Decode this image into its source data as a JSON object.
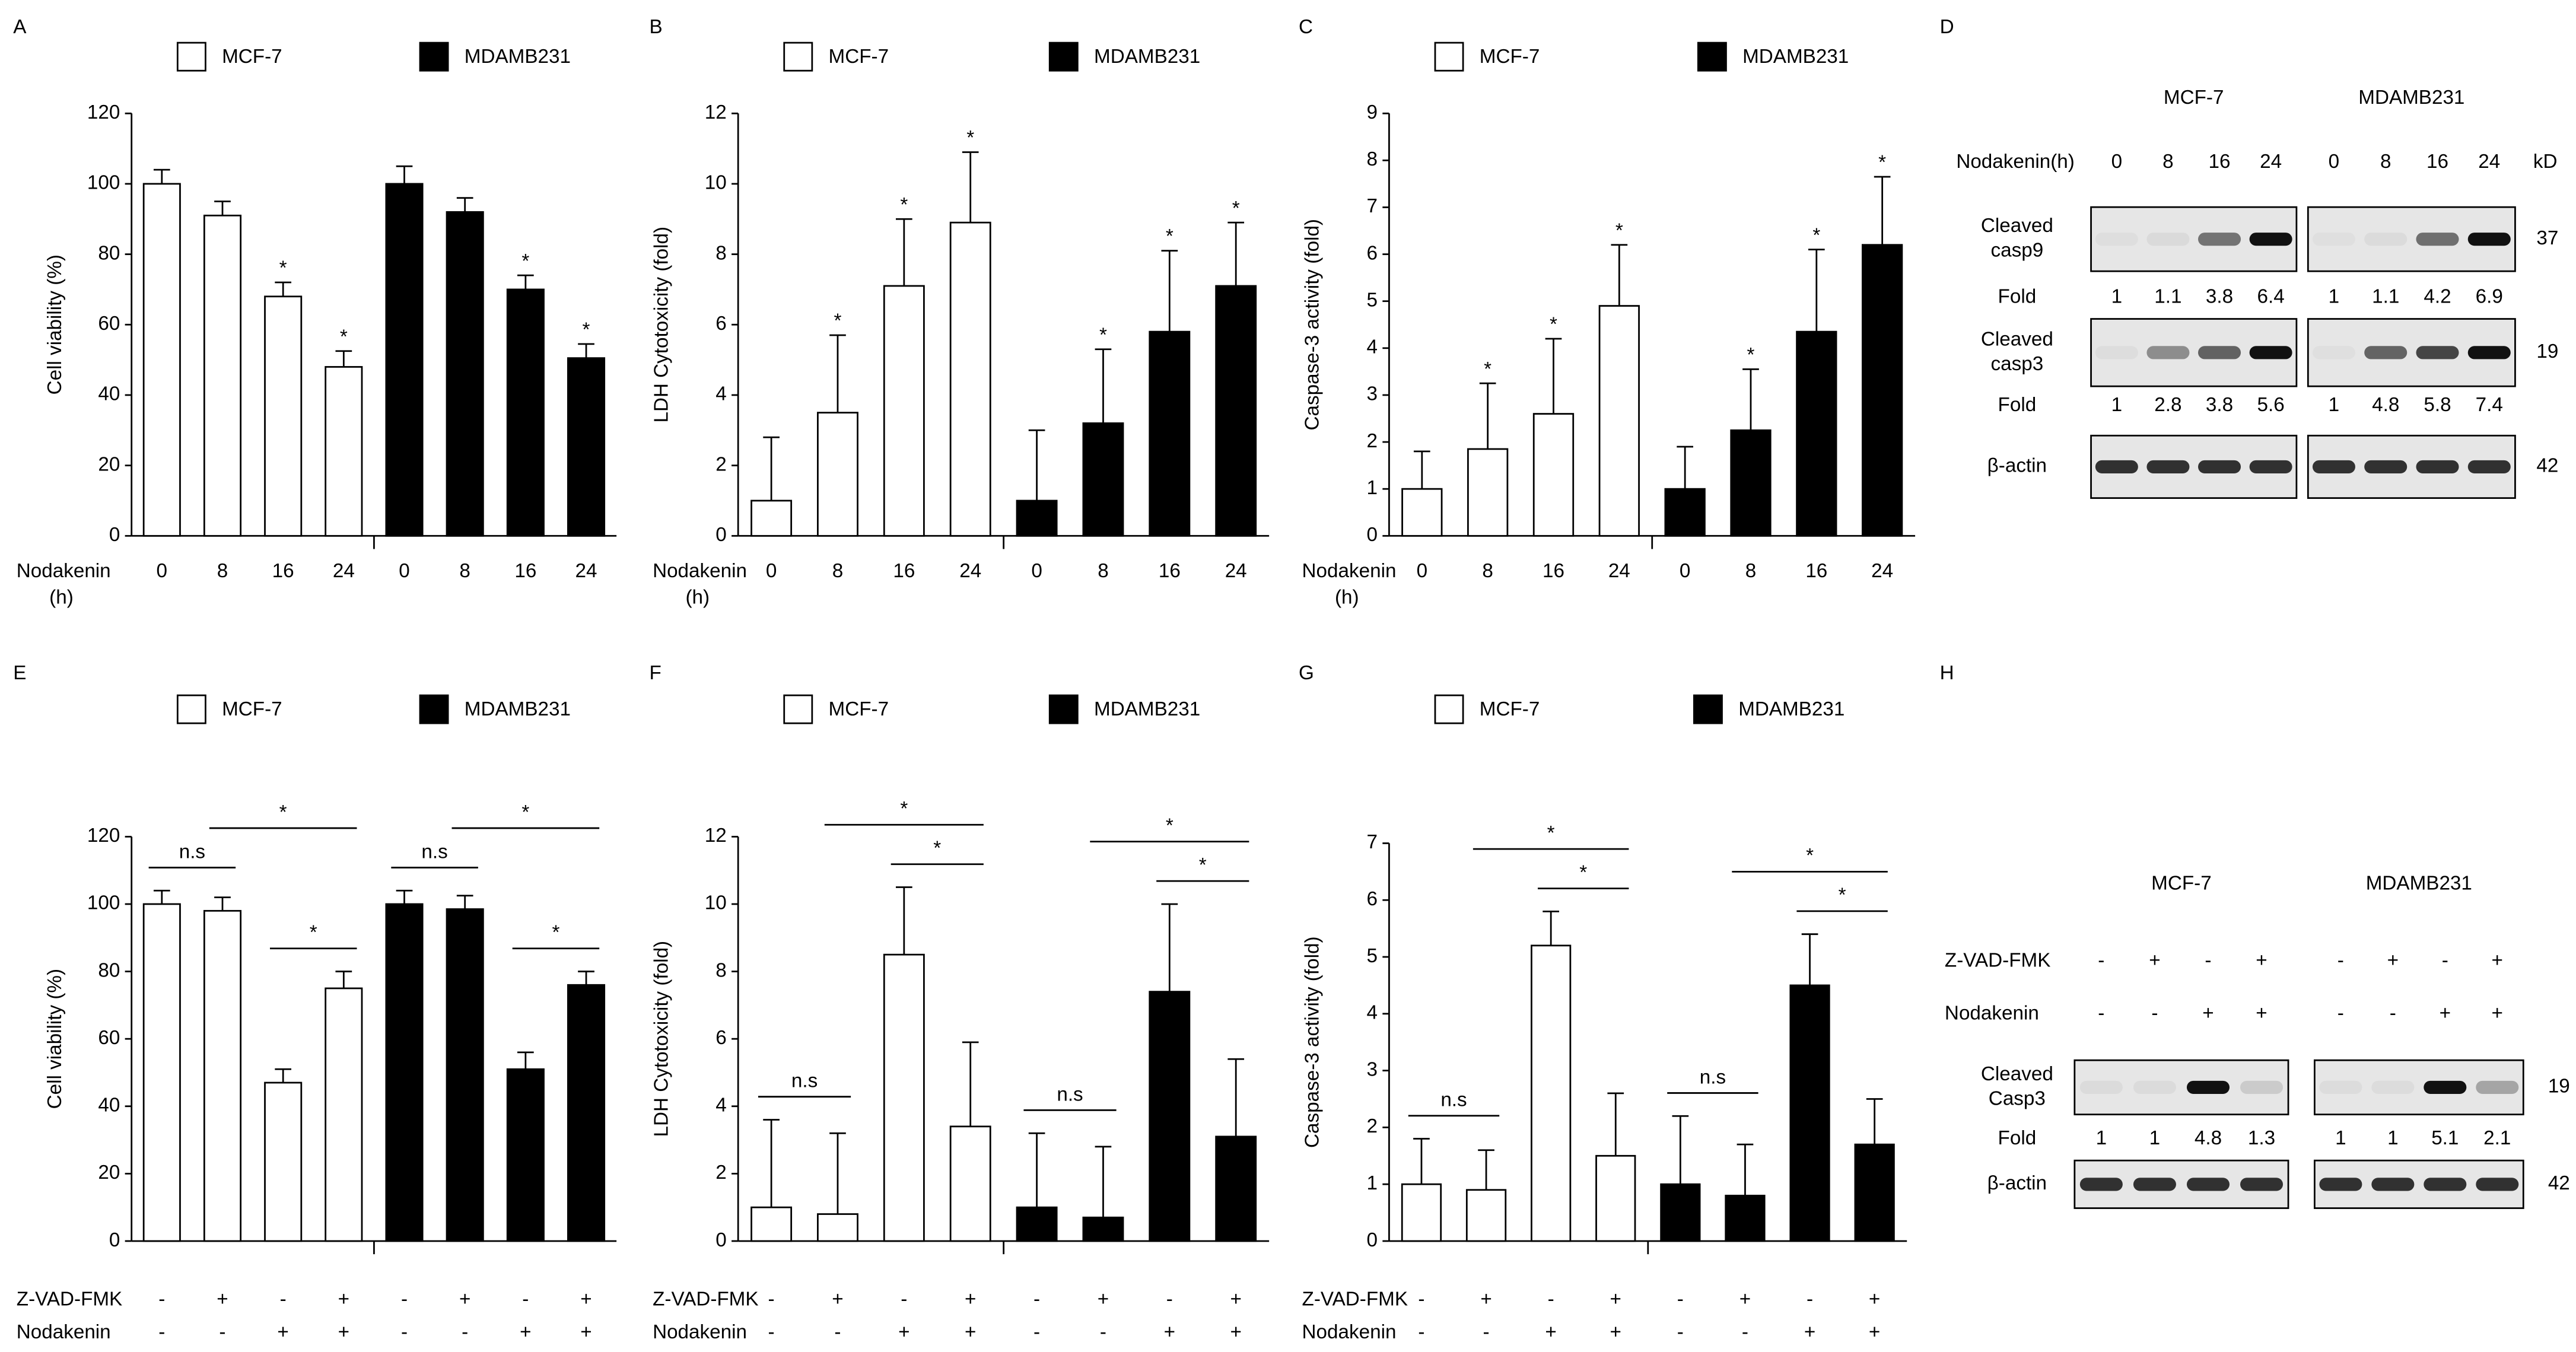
{
  "chart_data": [
    {
      "panel": "A",
      "type": "bar",
      "ylabel": "Cell viability (%)",
      "ylim": [
        0,
        120
      ],
      "yticks": [
        0,
        20,
        40,
        60,
        80,
        100,
        120
      ],
      "x_label": [
        "Nodakenin",
        "(h)"
      ],
      "categories": [
        "0",
        "8",
        "16",
        "24"
      ],
      "series": [
        {
          "name": "MCF-7",
          "color": "#ffffff",
          "values": [
            100,
            91,
            68,
            48
          ],
          "errors": [
            4,
            4,
            4,
            4.5
          ],
          "marks": [
            null,
            null,
            "*",
            "*"
          ]
        },
        {
          "name": "MDAMB231",
          "color": "#000000",
          "values": [
            100,
            92,
            70,
            50.5
          ],
          "errors": [
            5,
            4,
            4,
            4
          ],
          "marks": [
            null,
            null,
            "*",
            "*"
          ]
        }
      ]
    },
    {
      "panel": "B",
      "type": "bar",
      "ylabel": "LDH Cytotoxicity (fold)",
      "ylim": [
        0,
        12
      ],
      "yticks": [
        0,
        2,
        4,
        6,
        8,
        10,
        12
      ],
      "x_label": [
        "Nodakenin",
        "(h)"
      ],
      "categories": [
        "0",
        "8",
        "16",
        "24"
      ],
      "series": [
        {
          "name": "MCF-7",
          "color": "#ffffff",
          "values": [
            1,
            3.5,
            7.1,
            8.9
          ],
          "errors": [
            1.8,
            2.2,
            1.9,
            2.0
          ],
          "marks": [
            null,
            "*",
            "*",
            "*"
          ]
        },
        {
          "name": "MDAMB231",
          "color": "#000000",
          "values": [
            1,
            3.2,
            5.8,
            7.1
          ],
          "errors": [
            2.0,
            2.1,
            2.3,
            1.8
          ],
          "marks": [
            null,
            "*",
            "*",
            "*"
          ]
        }
      ]
    },
    {
      "panel": "C",
      "type": "bar",
      "ylabel": "Caspase-3 activity (fold)",
      "ylim": [
        0,
        9
      ],
      "yticks": [
        0,
        1,
        2,
        3,
        4,
        5,
        6,
        7,
        8,
        9
      ],
      "x_label": [
        "Nodakenin",
        "(h)"
      ],
      "categories": [
        "0",
        "8",
        "16",
        "24"
      ],
      "series": [
        {
          "name": "MCF-7",
          "color": "#ffffff",
          "values": [
            1,
            1.85,
            2.6,
            4.9
          ],
          "errors": [
            0.8,
            1.4,
            1.6,
            1.3
          ],
          "marks": [
            null,
            "*",
            "*",
            "*"
          ]
        },
        {
          "name": "MDAMB231",
          "color": "#000000",
          "values": [
            1,
            2.25,
            4.35,
            6.2
          ],
          "errors": [
            0.9,
            1.3,
            1.75,
            1.45
          ],
          "marks": [
            null,
            "*",
            "*",
            "*"
          ]
        }
      ]
    },
    {
      "panel": "E",
      "type": "bar",
      "ylabel": "Cell viability (%)",
      "ylim": [
        0,
        120
      ],
      "yticks": [
        0,
        20,
        40,
        60,
        80,
        100,
        120
      ],
      "conditions": [
        {
          "name": "Z-VAD-FMK",
          "levels": [
            "-",
            "+",
            "-",
            "+"
          ]
        },
        {
          "name": "Nodakenin",
          "levels": [
            "-",
            "-",
            "+",
            "+"
          ]
        }
      ],
      "series": [
        {
          "name": "MCF-7",
          "color": "#ffffff",
          "values": [
            100,
            98,
            47,
            75
          ],
          "errors": [
            4,
            4,
            4,
            5
          ],
          "comparisons": [
            {
              "from": 0,
              "to": 1,
              "label": "n.s"
            },
            {
              "from": 2,
              "to": 3,
              "label": "*"
            },
            {
              "from": 1,
              "to": 3,
              "label": "*"
            }
          ]
        },
        {
          "name": "MDAMB231",
          "color": "#000000",
          "values": [
            100,
            98.5,
            51,
            76
          ],
          "errors": [
            4,
            4,
            5,
            4
          ],
          "comparisons": [
            {
              "from": 0,
              "to": 1,
              "label": "n.s"
            },
            {
              "from": 2,
              "to": 3,
              "label": "*"
            },
            {
              "from": 1,
              "to": 3,
              "label": "*"
            }
          ]
        }
      ]
    },
    {
      "panel": "F",
      "type": "bar",
      "ylabel": "LDH Cytotoxicity (fold)",
      "ylim": [
        0,
        12
      ],
      "yticks": [
        0,
        2,
        4,
        6,
        8,
        10,
        12
      ],
      "conditions": [
        {
          "name": "Z-VAD-FMK",
          "levels": [
            "-",
            "+",
            "-",
            "+"
          ]
        },
        {
          "name": "Nodakenin",
          "levels": [
            "-",
            "-",
            "+",
            "+"
          ]
        }
      ],
      "series": [
        {
          "name": "MCF-7",
          "color": "#ffffff",
          "values": [
            1,
            0.8,
            8.5,
            3.4
          ],
          "errors": [
            2.6,
            2.4,
            2.0,
            2.5
          ],
          "comparisons": [
            {
              "from": 0,
              "to": 1,
              "label": "n.s"
            },
            {
              "from": 2,
              "to": 3,
              "label": "*"
            },
            {
              "from": 1,
              "to": 3,
              "label": "*"
            }
          ]
        },
        {
          "name": "MDAMB231",
          "color": "#000000",
          "values": [
            1,
            0.7,
            7.4,
            3.1
          ],
          "errors": [
            2.2,
            2.1,
            2.6,
            2.3
          ],
          "comparisons": [
            {
              "from": 0,
              "to": 1,
              "label": "n.s"
            },
            {
              "from": 2,
              "to": 3,
              "label": "*"
            },
            {
              "from": 1,
              "to": 3,
              "label": "*"
            }
          ]
        }
      ]
    },
    {
      "panel": "G",
      "type": "bar",
      "ylabel": "Caspase-3 activity (fold)",
      "ylim": [
        0,
        7
      ],
      "yticks": [
        0,
        1,
        2,
        3,
        4,
        5,
        6,
        7
      ],
      "conditions": [
        {
          "name": "Z-VAD-FMK",
          "levels": [
            "-",
            "+",
            "-",
            "+"
          ]
        },
        {
          "name": "Nodakenin",
          "levels": [
            "-",
            "-",
            "+",
            "+"
          ]
        }
      ],
      "series": [
        {
          "name": "MCF-7",
          "color": "#ffffff",
          "values": [
            1,
            0.9,
            5.2,
            1.5
          ],
          "errors": [
            0.8,
            0.7,
            0.6,
            1.1
          ],
          "comparisons": [
            {
              "from": 0,
              "to": 1,
              "label": "n.s"
            },
            {
              "from": 2,
              "to": 3,
              "label": "*"
            },
            {
              "from": 1,
              "to": 3,
              "label": "*"
            }
          ]
        },
        {
          "name": "MDAMB231",
          "color": "#000000",
          "values": [
            1,
            0.8,
            4.5,
            1.7
          ],
          "errors": [
            1.2,
            0.9,
            0.9,
            0.8
          ],
          "comparisons": [
            {
              "from": 0,
              "to": 1,
              "label": "n.s"
            },
            {
              "from": 2,
              "to": 3,
              "label": "*"
            },
            {
              "from": 1,
              "to": 3,
              "label": "*"
            }
          ]
        }
      ]
    }
  ],
  "blots": [
    {
      "panel": "D",
      "groups": [
        "MCF-7",
        "MDAMB231"
      ],
      "unit": "kD",
      "headers": [
        {
          "name": "Nodakenin(h)",
          "levels": [
            [
              "0",
              "8",
              "16",
              "24"
            ],
            [
              "0",
              "8",
              "16",
              "24"
            ]
          ]
        }
      ],
      "rows": [
        {
          "kind": "blot",
          "label": [
            "Cleaved",
            "casp9"
          ],
          "kd": 37
        },
        {
          "kind": "fold",
          "label": [
            "Fold"
          ],
          "values": [
            [
              1,
              1.1,
              3.8,
              6.4
            ],
            [
              1,
              1.1,
              4.2,
              6.9
            ]
          ]
        },
        {
          "kind": "blot",
          "label": [
            "Cleaved",
            "casp3"
          ],
          "kd": 19
        },
        {
          "kind": "fold",
          "label": [
            "Fold"
          ],
          "values": [
            [
              1,
              2.8,
              3.8,
              5.6
            ],
            [
              1,
              4.8,
              5.8,
              7.4
            ]
          ]
        },
        {
          "kind": "blot",
          "label": [
            "β-actin"
          ],
          "kd": 42
        }
      ]
    },
    {
      "panel": "H",
      "groups": [
        "MCF-7",
        "MDAMB231"
      ],
      "headers": [
        {
          "name": "Z-VAD-FMK",
          "levels": [
            [
              "-",
              "+",
              "-",
              "+"
            ],
            [
              "-",
              "+",
              "-",
              "+"
            ]
          ]
        },
        {
          "name": "Nodakenin",
          "levels": [
            [
              "-",
              "-",
              "+",
              "+"
            ],
            [
              "-",
              "-",
              "+",
              "+"
            ]
          ]
        }
      ],
      "rows": [
        {
          "kind": "blot",
          "label": [
            "Cleaved",
            "Casp3"
          ],
          "kd": 19
        },
        {
          "kind": "fold",
          "label": [
            "Fold"
          ],
          "values": [
            [
              1,
              1,
              4.8,
              1.3
            ],
            [
              1,
              1,
              5.1,
              2.1
            ]
          ]
        },
        {
          "kind": "blot",
          "label": [
            "β-actin"
          ],
          "kd": 42
        }
      ]
    }
  ]
}
